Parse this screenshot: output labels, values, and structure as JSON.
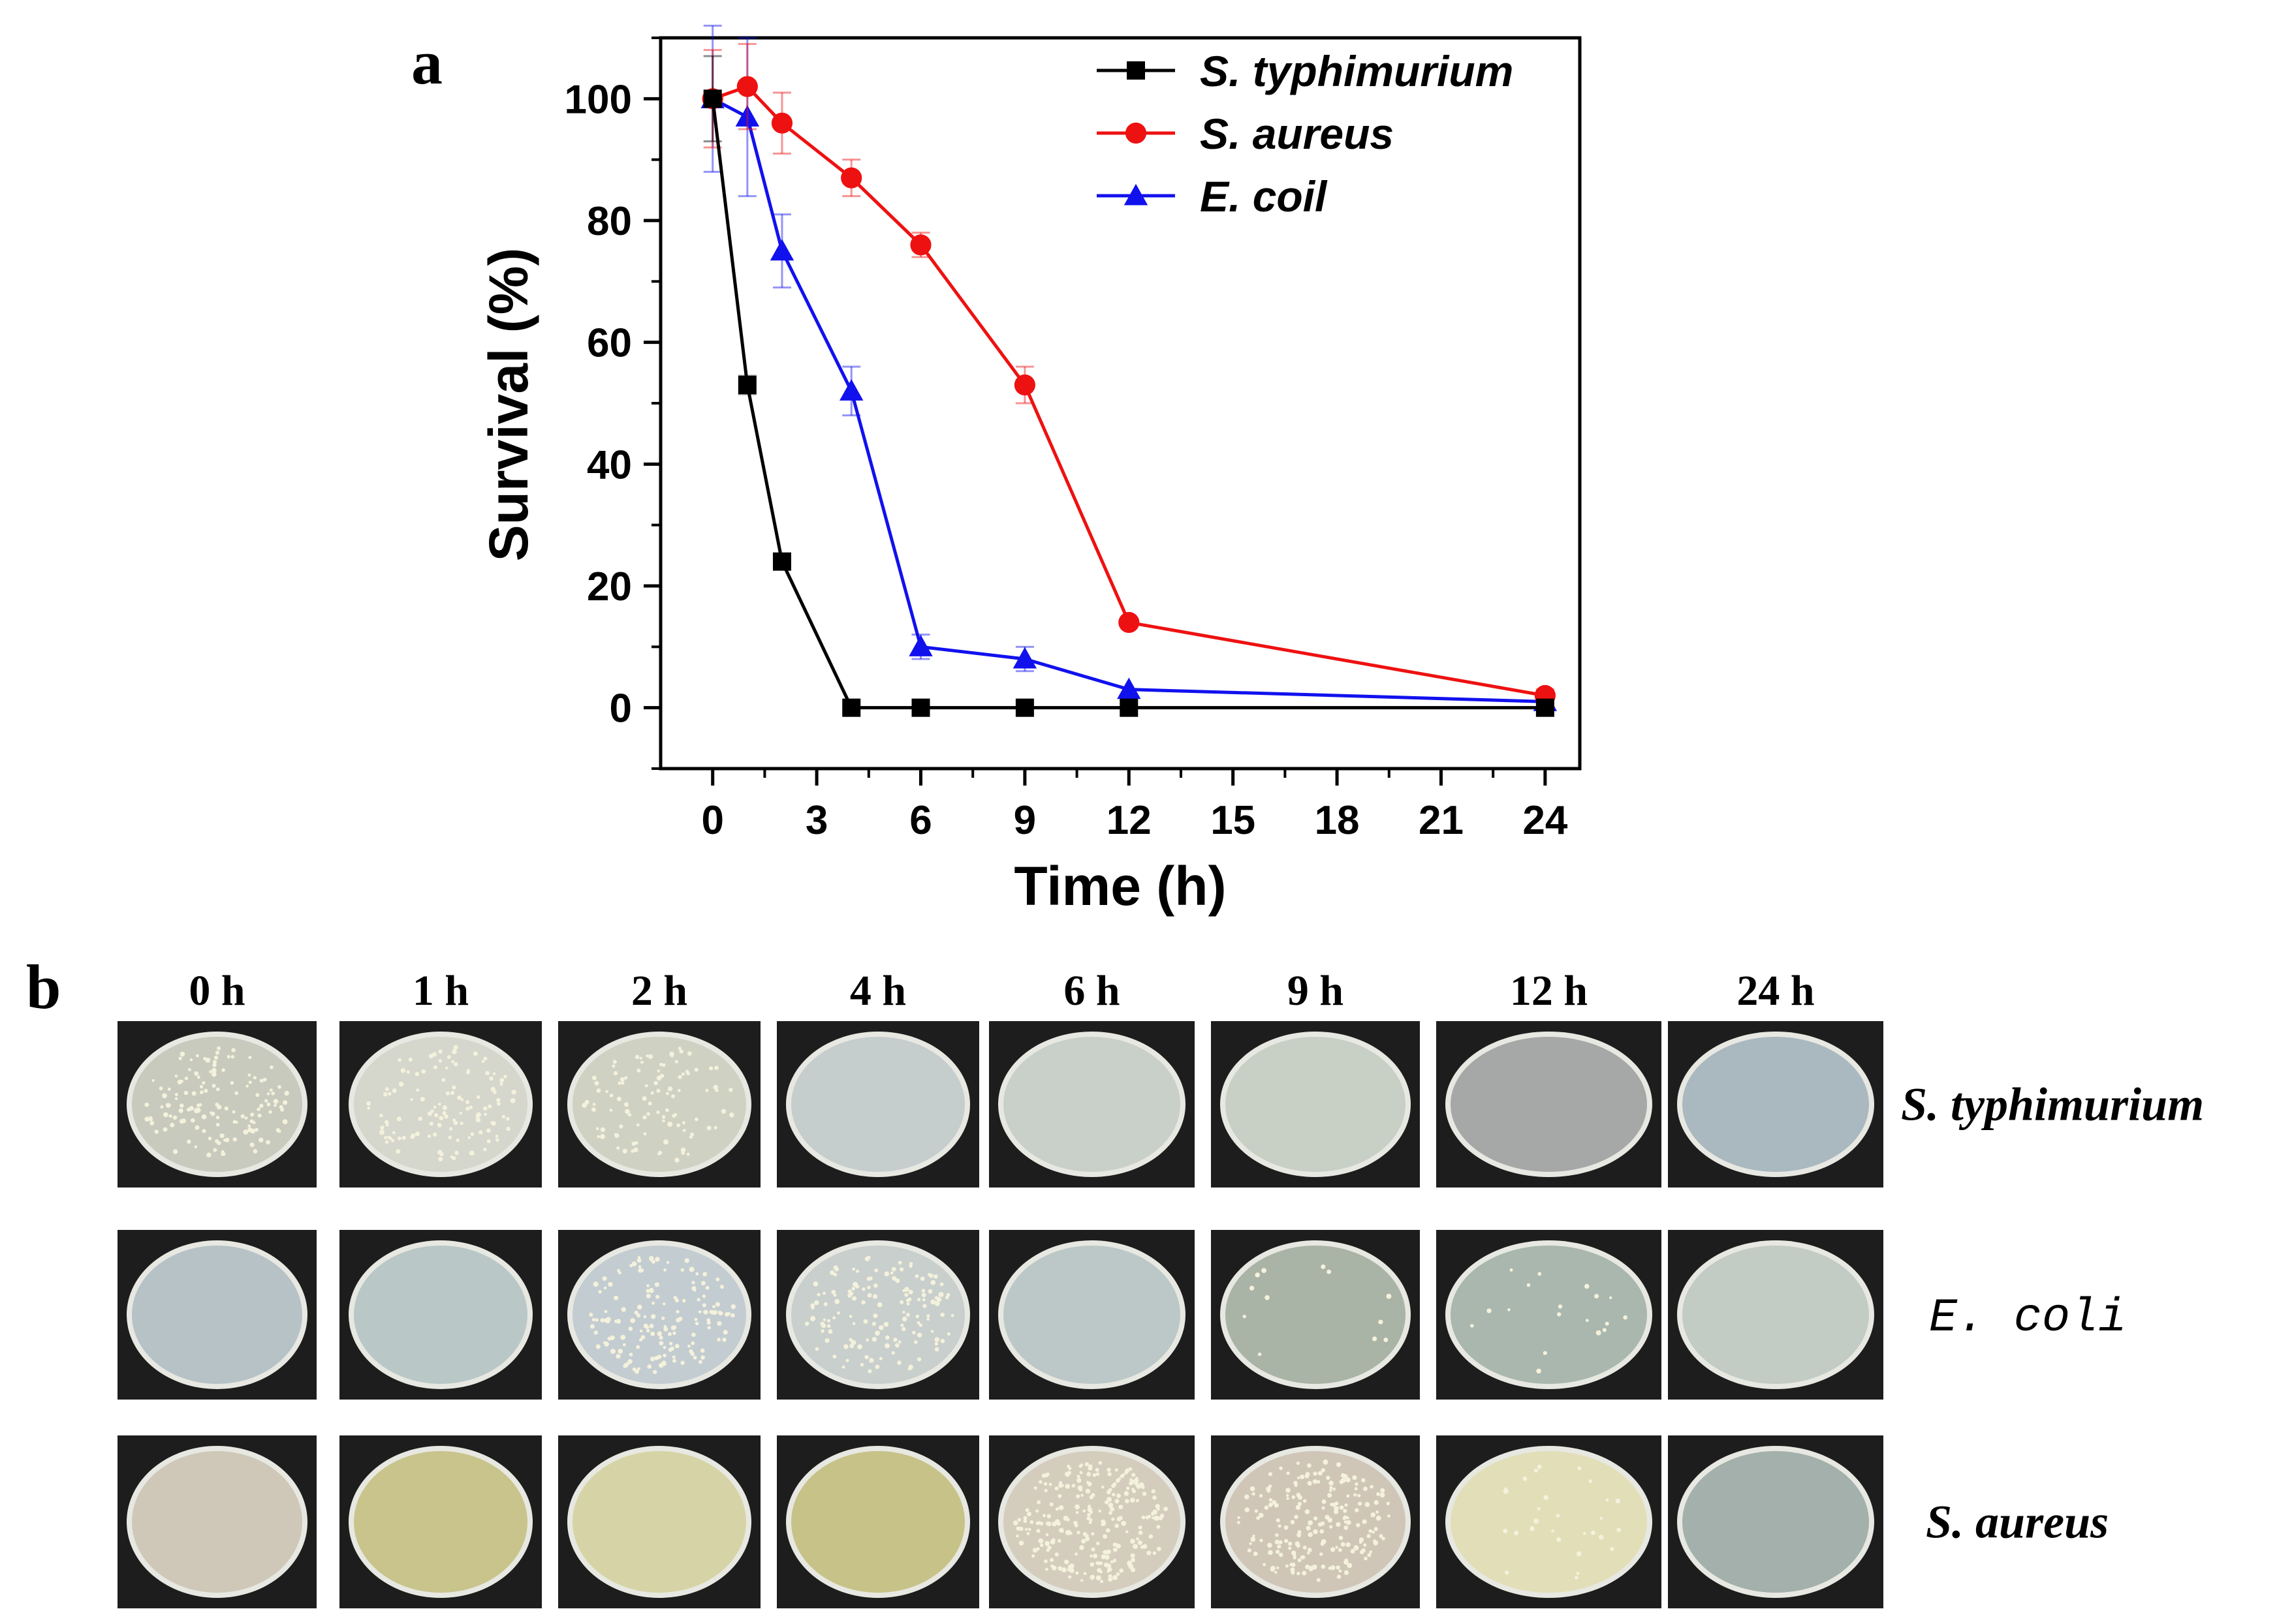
{
  "panel_a_label": "a",
  "panel_b_label": "b",
  "chart_data": {
    "type": "line",
    "xlabel": "Time (h)",
    "ylabel": "Survival (%)",
    "xlim": [
      -1.5,
      25
    ],
    "ylim": [
      -10,
      110
    ],
    "xticks": [
      0,
      3,
      6,
      9,
      12,
      15,
      18,
      21,
      24
    ],
    "yticks": [
      0,
      20,
      40,
      60,
      80,
      100
    ],
    "legend_position": "top-right",
    "series": [
      {
        "name": "S. typhimurium",
        "color": "#000000",
        "marker": "square",
        "x": [
          0,
          1,
          2,
          4,
          6,
          9,
          12,
          24
        ],
        "y": [
          100,
          53,
          24,
          0,
          0,
          0,
          0,
          0
        ],
        "err": [
          7,
          1.5,
          0,
          0,
          0,
          0,
          0,
          0
        ]
      },
      {
        "name": "S. aureus",
        "color": "#ee1111",
        "marker": "circle",
        "x": [
          0,
          1,
          2,
          4,
          6,
          9,
          12,
          24
        ],
        "y": [
          100,
          102,
          96,
          87,
          76,
          53,
          14,
          2
        ],
        "err": [
          8,
          7,
          5,
          3,
          2,
          3,
          0,
          1
        ]
      },
      {
        "name": "E. coil",
        "color": "#1111ee",
        "marker": "triangle",
        "x": [
          0,
          1,
          2,
          4,
          6,
          9,
          12,
          24
        ],
        "y": [
          100,
          97,
          75,
          52,
          10,
          8,
          3,
          1
        ],
        "err": [
          12,
          13,
          6,
          4,
          2,
          2,
          0,
          0
        ]
      }
    ]
  },
  "panel_b": {
    "time_labels": [
      "0 h",
      "1 h",
      "2 h",
      "4 h",
      "6 h",
      "9 h",
      "12 h",
      "24 h"
    ],
    "rows": [
      {
        "label": "S.  typhimurium",
        "colonies": [
          140,
          120,
          100,
          0,
          0,
          0,
          0,
          0
        ]
      },
      {
        "label": "E.  coli",
        "colonies": [
          0,
          0,
          160,
          140,
          0,
          12,
          18,
          0
        ]
      },
      {
        "label": "S. aureus",
        "colonies": [
          0,
          0,
          0,
          0,
          260,
          200,
          28,
          0
        ]
      }
    ]
  }
}
